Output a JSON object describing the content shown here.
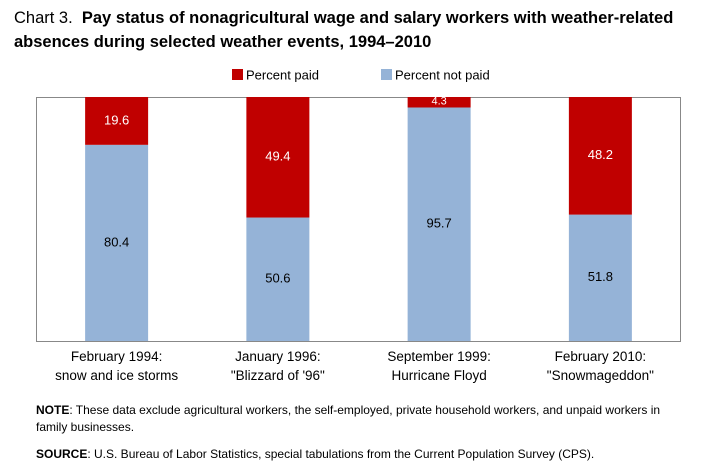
{
  "chart_number": "Chart 3.",
  "title": "Pay status of nonagricultural wage and salary workers with weather-related absences during selected weather events, 1994–2010",
  "chart_data": {
    "type": "bar",
    "stacked": true,
    "percent_scale": true,
    "ylim": [
      0,
      100
    ],
    "grid": false,
    "legend_position": "top",
    "categories": [
      [
        "February 1994:",
        "snow and ice storms"
      ],
      [
        "January 1996:",
        "\"Blizzard of '96\""
      ],
      [
        "September 1999:",
        "Hurricane Floyd"
      ],
      [
        "February 2010:",
        "\"Snowmageddon\""
      ]
    ],
    "series": [
      {
        "name": "Percent not paid",
        "color": "#95b3d7",
        "values": [
          80.4,
          50.6,
          95.7,
          51.8
        ],
        "labels": [
          "80.4",
          "50.6",
          "95.7",
          "51.8"
        ]
      },
      {
        "name": "Percent paid",
        "color": "#c00000",
        "values": [
          19.6,
          49.4,
          4.3,
          48.2
        ],
        "labels": [
          "19.6",
          "49.4",
          "4.3",
          "48.2"
        ]
      }
    ]
  },
  "note": {
    "label": "NOTE",
    "text": ":  These data exclude agricultural workers, the self-employed, private household workers, and unpaid workers in family businesses."
  },
  "source": {
    "label": "SOURCE",
    "text": ":  U.S. Bureau of Labor Statistics, special tabulations from the Current Population Survey (CPS)."
  }
}
